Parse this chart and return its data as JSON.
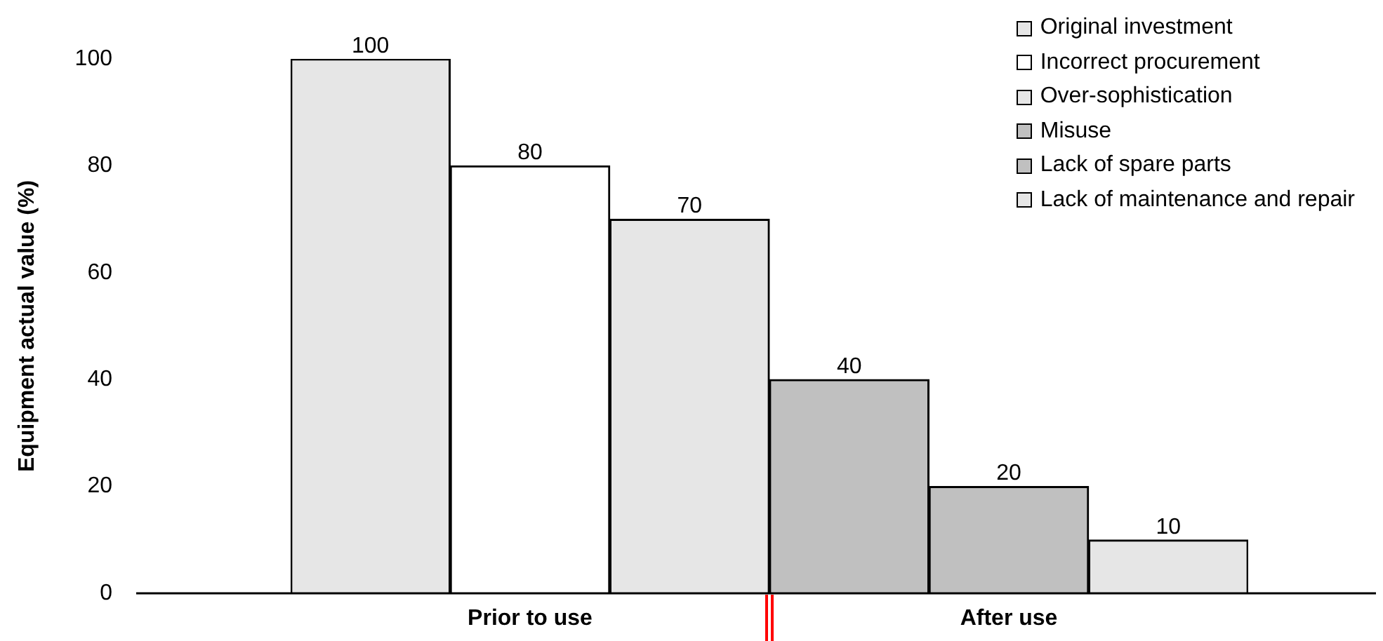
{
  "chart_data": {
    "type": "bar",
    "ylabel": "Equipment actual value (%)",
    "stacked": true,
    "categories": [
      null,
      null,
      null,
      null,
      null,
      null
    ],
    "series": [
      {
        "name": "Original investment",
        "color": "#e6e6e6",
        "values": [
          100,
          null,
          null,
          null,
          null,
          null
        ]
      },
      {
        "name": "Incorrect procurement",
        "color": "#ffffff",
        "values": [
          null,
          80,
          null,
          null,
          null,
          null
        ]
      },
      {
        "name": "Over-sophistication",
        "color": "#e6e6e6",
        "values": [
          null,
          null,
          70,
          null,
          null,
          null
        ]
      },
      {
        "name": "Misuse",
        "color": "#c0c0c0",
        "values": [
          null,
          null,
          null,
          40,
          null,
          null
        ]
      },
      {
        "name": "Lack of spare parts",
        "color": "#c0c0c0",
        "values": [
          null,
          null,
          null,
          null,
          20,
          null
        ]
      },
      {
        "name": "Lack of maintenance and repair",
        "color": "#e6e6e6",
        "values": [
          null,
          null,
          null,
          null,
          null,
          10
        ]
      }
    ],
    "ylim": [
      0,
      100
    ],
    "yticks": [
      0,
      20,
      40,
      60,
      80,
      100
    ],
    "data_labels": true,
    "legend": "top right",
    "tick_labels": "y",
    "grid": false,
    "annotations": [
      "Prior to use",
      "After use"
    ]
  }
}
